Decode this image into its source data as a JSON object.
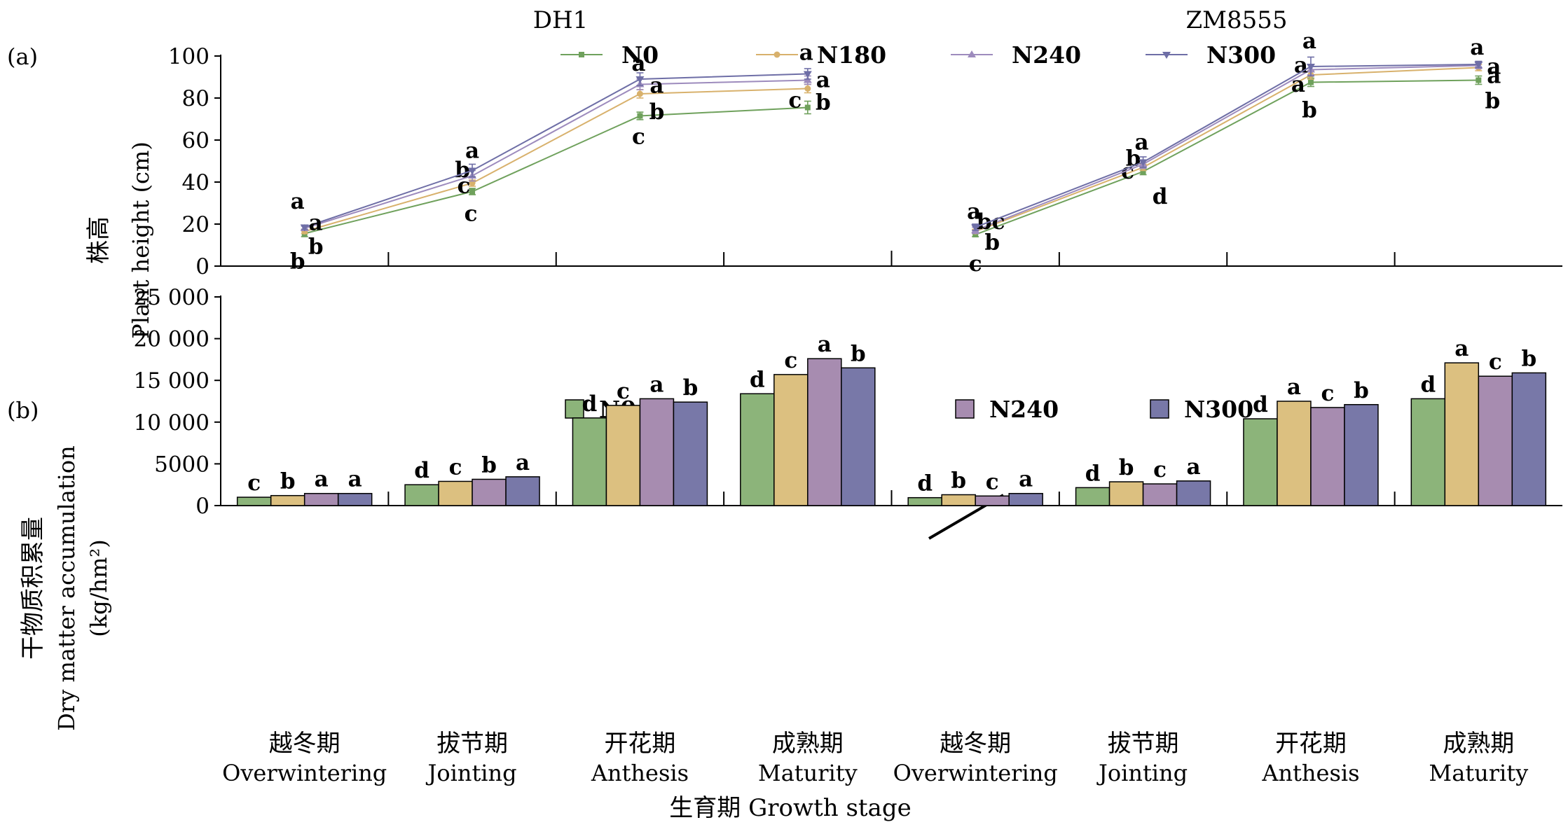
{
  "panel_labels": {
    "a": "(a)",
    "b": "(b)"
  },
  "cultivars": [
    "DH1",
    "ZM8555"
  ],
  "legend": [
    "N0",
    "N180",
    "N240",
    "N300"
  ],
  "colors": {
    "N0": "#8cb47a",
    "N180": "#dcc080",
    "N240": "#a78cb0",
    "N300": "#7878a8",
    "N0_line": "#6fa15c",
    "N180_line": "#d8b16c",
    "N240_line": "#9d8bbd",
    "N300_line": "#6e6ea6"
  },
  "chart_data": [
    {
      "type": "line",
      "panel": "(a)",
      "ylabel_cn": "株高",
      "ylabel_en": "Plant height (cm)",
      "ylim": [
        0,
        100
      ],
      "yticks": [
        0,
        20,
        40,
        60,
        80,
        100
      ],
      "groups": [
        {
          "name": "DH1",
          "series": [
            {
              "name": "N0",
              "values": [
                15.5,
                35.5,
                71.5,
                75.5
              ],
              "err": [
                1.5,
                1.5,
                1.8,
                3.0
              ],
              "letters": [
                "b",
                "c",
                "c",
                "c"
              ]
            },
            {
              "name": "N180",
              "values": [
                16.5,
                39.5,
                82.0,
                84.5
              ],
              "err": [
                1.0,
                1.5,
                2.0,
                2.0
              ],
              "letters": [
                "b",
                "c",
                "b",
                "b"
              ]
            },
            {
              "name": "N240",
              "values": [
                18.0,
                43.0,
                86.5,
                88.5
              ],
              "err": [
                1.0,
                2.5,
                2.5,
                2.0
              ],
              "letters": [
                "a",
                "b",
                "a",
                "a"
              ]
            },
            {
              "name": "N300",
              "values": [
                18.5,
                45.5,
                89.0,
                91.5
              ],
              "err": [
                1.0,
                3.0,
                3.0,
                2.5
              ],
              "letters": [
                "a",
                "a",
                "a",
                "a"
              ]
            }
          ]
        },
        {
          "name": "ZM8555",
          "series": [
            {
              "name": "N0",
              "values": [
                15.0,
                45.0,
                87.5,
                88.5
              ],
              "err": [
                1.0,
                1.5,
                2.0,
                2.0
              ],
              "letters": [
                "c",
                "d",
                "b",
                "b"
              ]
            },
            {
              "name": "N180",
              "values": [
                16.5,
                47.0,
                91.0,
                94.5
              ],
              "err": [
                1.0,
                1.5,
                2.0,
                1.5
              ],
              "letters": [
                "b",
                "c",
                "a",
                "a"
              ]
            },
            {
              "name": "N240",
              "values": [
                17.0,
                48.5,
                93.5,
                95.5
              ],
              "err": [
                1.5,
                2.0,
                2.5,
                1.5
              ],
              "letters": [
                "bc",
                "b",
                "a",
                "a"
              ]
            },
            {
              "name": "N300",
              "values": [
                18.5,
                49.5,
                95.0,
                96.0
              ],
              "err": [
                1.5,
                2.5,
                4.5,
                1.5
              ],
              "letters": [
                "a",
                "a",
                "a",
                "a"
              ]
            }
          ]
        }
      ]
    },
    {
      "type": "bar",
      "panel": "(b)",
      "ylabel_cn": "干物质积累量",
      "ylabel_en": "Dry matter accumulation",
      "ylabel_unit": "(kg/hm²)",
      "ylim": [
        0,
        25000
      ],
      "yticks": [
        0,
        5000,
        10000,
        15000,
        20000,
        25000
      ],
      "ytick_labels": [
        "0",
        "5000",
        "10 000",
        "15 000",
        "20 000",
        "25 000"
      ],
      "groups": [
        {
          "name": "DH1",
          "categories": [
            "越冬期 Overwintering",
            "拔节期 Jointing",
            "开花期 Anthesis",
            "成熟期 Maturity"
          ],
          "series": [
            {
              "name": "N0",
              "values": [
                1000,
                2500,
                10500,
                13400
              ],
              "letters": [
                "c",
                "d",
                "d",
                "d"
              ]
            },
            {
              "name": "N180",
              "values": [
                1200,
                2900,
                12000,
                15700
              ],
              "letters": [
                "b",
                "c",
                "c",
                "c"
              ]
            },
            {
              "name": "N240",
              "values": [
                1450,
                3150,
                12800,
                17600
              ],
              "letters": [
                "a",
                "b",
                "a",
                "a"
              ]
            },
            {
              "name": "N300",
              "values": [
                1450,
                3450,
                12400,
                16500
              ],
              "letters": [
                "a",
                "a",
                "b",
                "b"
              ]
            }
          ]
        },
        {
          "name": "ZM8555",
          "categories": [
            "越冬期 Overwintering",
            "拔节期 Jointing",
            "开花期 Anthesis",
            "成熟期 Maturity"
          ],
          "series": [
            {
              "name": "N0",
              "values": [
                950,
                2150,
                10400,
                12800
              ],
              "letters": [
                "d",
                "d",
                "d",
                "d"
              ]
            },
            {
              "name": "N180",
              "values": [
                1300,
                2850,
                12500,
                17100
              ],
              "letters": [
                "b",
                "b",
                "a",
                "a"
              ]
            },
            {
              "name": "N240",
              "values": [
                1150,
                2600,
                11750,
                15500
              ],
              "letters": [
                "c",
                "c",
                "c",
                "c"
              ]
            },
            {
              "name": "N300",
              "values": [
                1450,
                2950,
                12100,
                15900
              ],
              "letters": [
                "a",
                "a",
                "b",
                "b"
              ]
            }
          ]
        }
      ]
    }
  ],
  "stages": [
    {
      "cn": "越冬期",
      "en": "Overwintering"
    },
    {
      "cn": "拔节期",
      "en": "Jointing"
    },
    {
      "cn": "开花期",
      "en": "Anthesis"
    },
    {
      "cn": "成熟期",
      "en": "Maturity"
    }
  ],
  "xlabel": "生育期 Growth stage"
}
